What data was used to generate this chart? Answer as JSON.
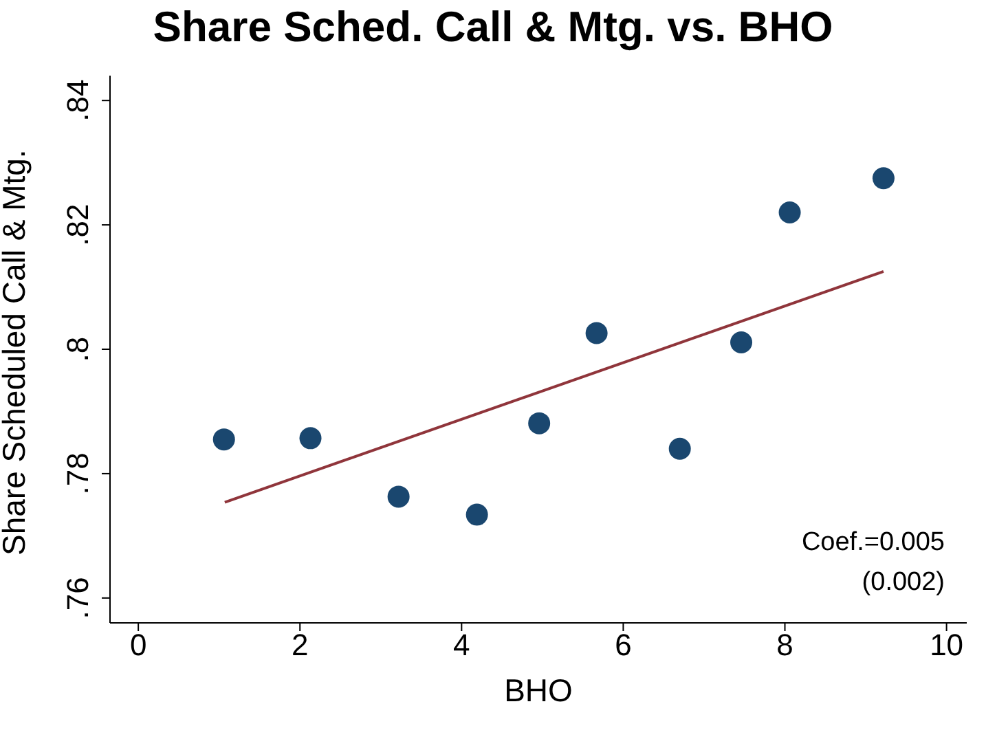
{
  "chart_data": {
    "type": "scatter",
    "title": "Share Sched. Call & Mtg. vs. BHO",
    "xlabel": "BHO",
    "ylabel": "Share Scheduled Call & Mtg.",
    "xlim": [
      -0.35,
      10.25
    ],
    "xticks": [
      0,
      2,
      4,
      6,
      8,
      10
    ],
    "ylim": [
      0.756,
      0.844
    ],
    "yticks": [
      {
        "value": 0.76,
        "label": ".76"
      },
      {
        "value": 0.78,
        "label": ".78"
      },
      {
        "value": 0.8,
        "label": ".8"
      },
      {
        "value": 0.82,
        "label": ".82"
      },
      {
        "value": 0.84,
        "label": ".84"
      }
    ],
    "marker": "circle",
    "legend": false,
    "series": [
      {
        "color": "#1a476f",
        "x": [
          1.06,
          2.13,
          3.22,
          4.19,
          4.96,
          5.67,
          6.7,
          7.46,
          8.06,
          9.22
        ],
        "values": [
          0.7855,
          0.7857,
          0.7763,
          0.7734,
          0.7881,
          0.8026,
          0.784,
          0.8011,
          0.822,
          0.8275
        ]
      },
      {
        "type": "line",
        "marker": "none",
        "color": "#90353b",
        "x": [
          1.07,
          9.22
        ],
        "values": [
          0.7754,
          0.8125
        ]
      }
    ],
    "annotations": [
      "Coef.=0.005",
      "(0.002)"
    ]
  }
}
